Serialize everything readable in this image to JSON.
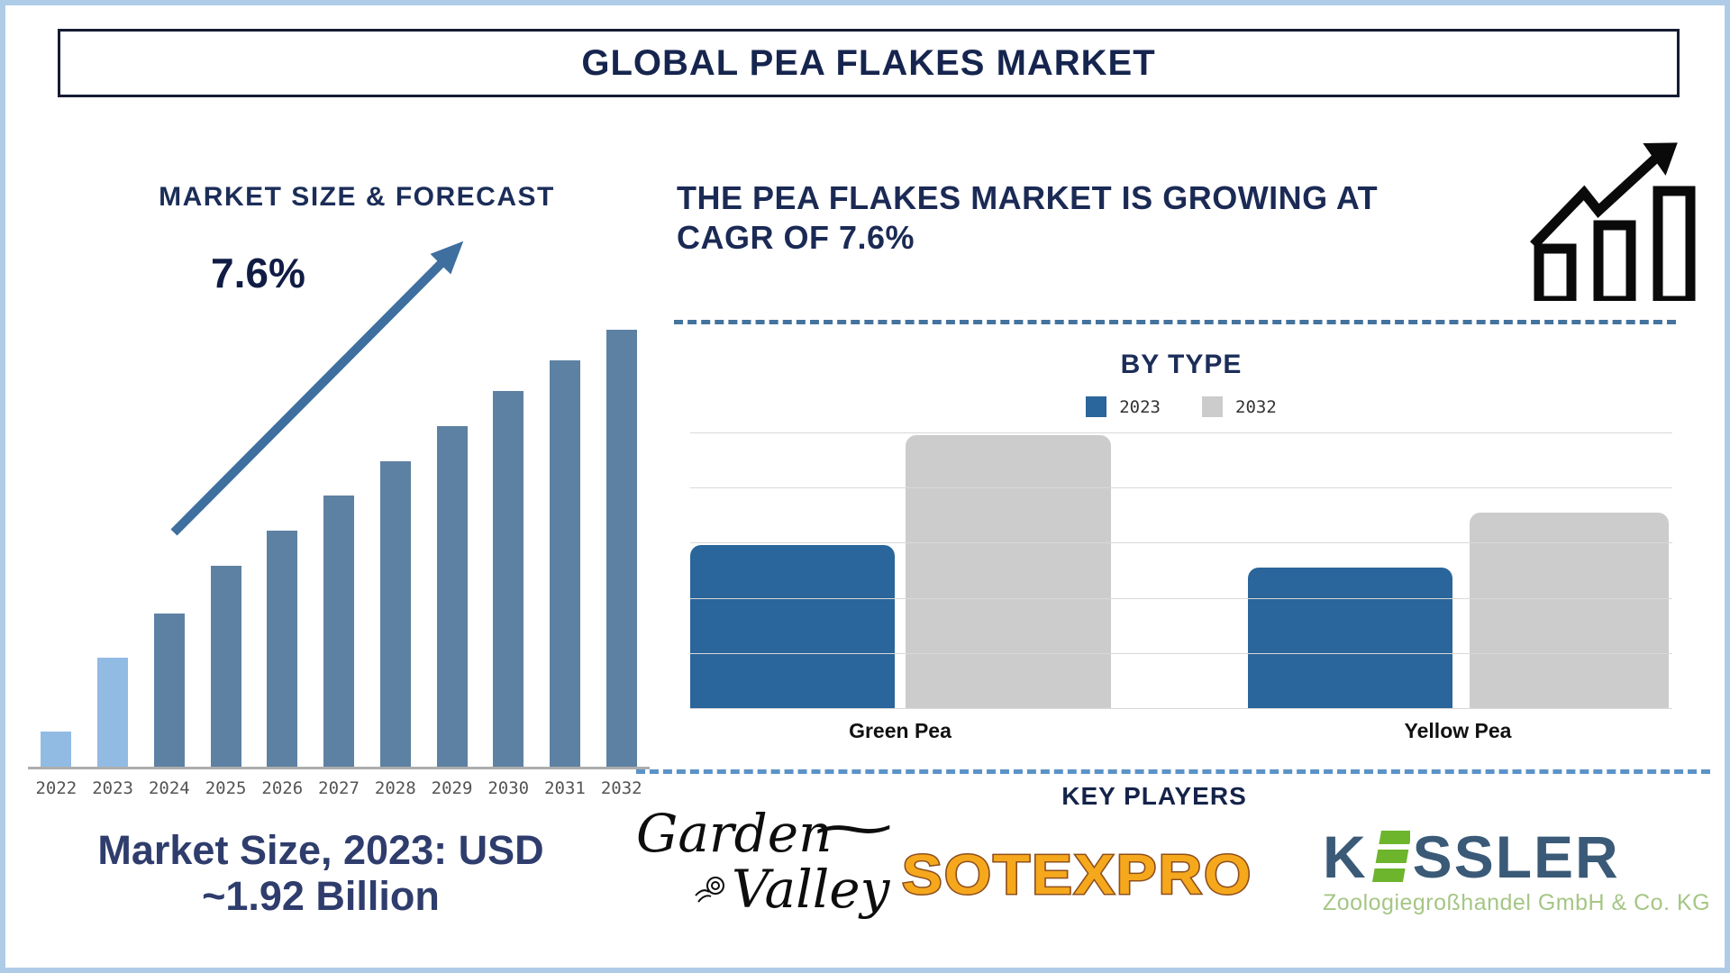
{
  "title": "GLOBAL PEA FLAKES MARKET",
  "left_section": {
    "heading": "MARKET SIZE & FORECAST",
    "cagr_annotation": "7.6%",
    "market_size_line1": "Market Size, 2023: USD",
    "market_size_line2": "~1.92 Billion"
  },
  "right_section": {
    "headline_line1": "THE PEA FLAKES MARKET IS GROWING AT",
    "headline_line2": "CAGR OF 7.6%",
    "by_type_title": "BY TYPE",
    "key_players_title": "KEY PLAYERS"
  },
  "logos": {
    "garden_valley_line1": "Garden",
    "garden_valley_swash": "~",
    "garden_valley_line2": "Valley",
    "sotexpro_text": "SOTEXPRO",
    "kessler_prefix": "K",
    "kessler_suffix": "SSLER",
    "kessler_subtitle": "Zoologiegroßhandel GmbH & Co. KG"
  },
  "colors": {
    "navy_text": "#1b2a55",
    "light_blue_bar": "#92bbe4",
    "steel_blue_bar": "#5d81a3",
    "arrow_blue": "#3e6f9f",
    "bytype_blue": "#2a659b",
    "bytype_gray": "#cccccc",
    "divider_dark": "#44739e",
    "divider_light": "#5b93c8",
    "frame_border": "#aecbe8",
    "sotexpro_orange": "#f6a81c",
    "kessler_blue": "#3a5a77",
    "kessler_green": "#6cb52c"
  },
  "chart_data": [
    {
      "type": "bar",
      "title": "MARKET SIZE & FORECAST",
      "categories": [
        "2022",
        "2023",
        "2024",
        "2025",
        "2026",
        "2027",
        "2028",
        "2029",
        "2030",
        "2031",
        "2032"
      ],
      "values_display_pct": [
        8,
        25,
        35,
        46,
        54,
        62,
        70,
        78,
        86,
        93,
        100
      ],
      "bar_colors": [
        "#92bbe4",
        "#92bbe4",
        "#5d81a3",
        "#5d81a3",
        "#5d81a3",
        "#5d81a3",
        "#5d81a3",
        "#5d81a3",
        "#5d81a3",
        "#5d81a3",
        "#5d81a3"
      ],
      "xlabel": "",
      "ylabel": "",
      "y_axis_shown": false,
      "grid": false,
      "annotation": "7.6%",
      "annotation_meaning": "CAGR growth arrow from 2025 bar to above 2032 bar",
      "known_point": "Market Size 2023 = USD ~1.92 Billion"
    },
    {
      "type": "bar",
      "title": "BY TYPE",
      "categories": [
        "Green Pea",
        "Yellow Pea"
      ],
      "series": [
        {
          "name": "2023",
          "color": "#2a659b",
          "values": [
            2.95,
            2.55
          ]
        },
        {
          "name": "2032",
          "color": "#cccccc",
          "values": [
            4.95,
            3.55
          ]
        }
      ],
      "ylim": [
        0,
        5
      ],
      "units": "relative (no value axis labels shown)",
      "grid": true,
      "gridline_step": 1,
      "legend_position": "top",
      "xlabel": "",
      "ylabel": ""
    }
  ]
}
